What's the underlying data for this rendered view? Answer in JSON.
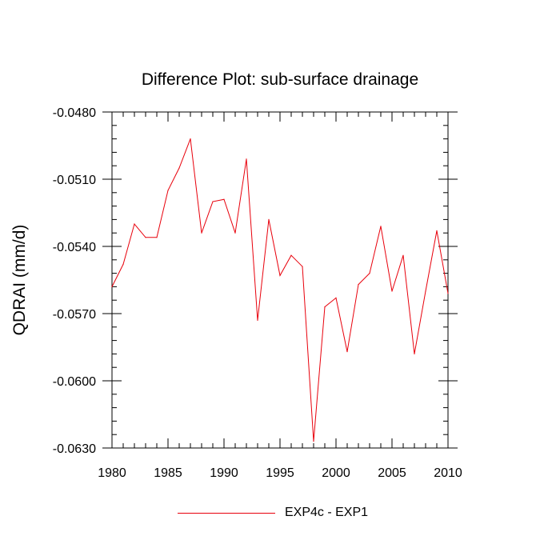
{
  "chart_data": {
    "type": "line",
    "title": "Difference Plot: sub-surface drainage",
    "xlabel": "",
    "ylabel": "QDRAI  (mm/d)",
    "xlim": [
      1980,
      2010
    ],
    "ylim": [
      -0.063,
      -0.048
    ],
    "x_ticks": [
      1980,
      1985,
      1990,
      1995,
      2000,
      2005,
      2010
    ],
    "x_tick_labels": [
      "1980",
      "1985",
      "1990",
      "1995",
      "2000",
      "2005",
      "2010"
    ],
    "y_ticks": [
      -0.048,
      -0.051,
      -0.054,
      -0.057,
      -0.06,
      -0.063
    ],
    "y_tick_labels": [
      "-0.0480",
      "-0.0510",
      "-0.0540",
      "-0.0570",
      "-0.0600",
      "-0.0630"
    ],
    "series": [
      {
        "name": "EXP4c - EXP1",
        "color": "#e8000b",
        "x": [
          1980,
          1981,
          1982,
          1983,
          1984,
          1985,
          1986,
          1987,
          1988,
          1989,
          1990,
          1991,
          1992,
          1993,
          1994,
          1995,
          1996,
          1997,
          1998,
          1999,
          2000,
          2001,
          2002,
          2003,
          2004,
          2005,
          2006,
          2007,
          2008,
          2009,
          2010
        ],
        "values": [
          -0.0558,
          -0.0548,
          -0.053,
          -0.0536,
          -0.0536,
          -0.0515,
          -0.0505,
          -0.0492,
          -0.0534,
          -0.052,
          -0.0519,
          -0.0534,
          -0.0501,
          -0.0573,
          -0.0528,
          -0.0553,
          -0.0544,
          -0.0549,
          -0.0627,
          -0.0567,
          -0.0563,
          -0.0587,
          -0.0557,
          -0.0552,
          -0.0531,
          -0.056,
          -0.0544,
          -0.0588,
          -0.056,
          -0.0533,
          -0.0561
        ]
      }
    ],
    "legend_position": "bottom-center"
  }
}
